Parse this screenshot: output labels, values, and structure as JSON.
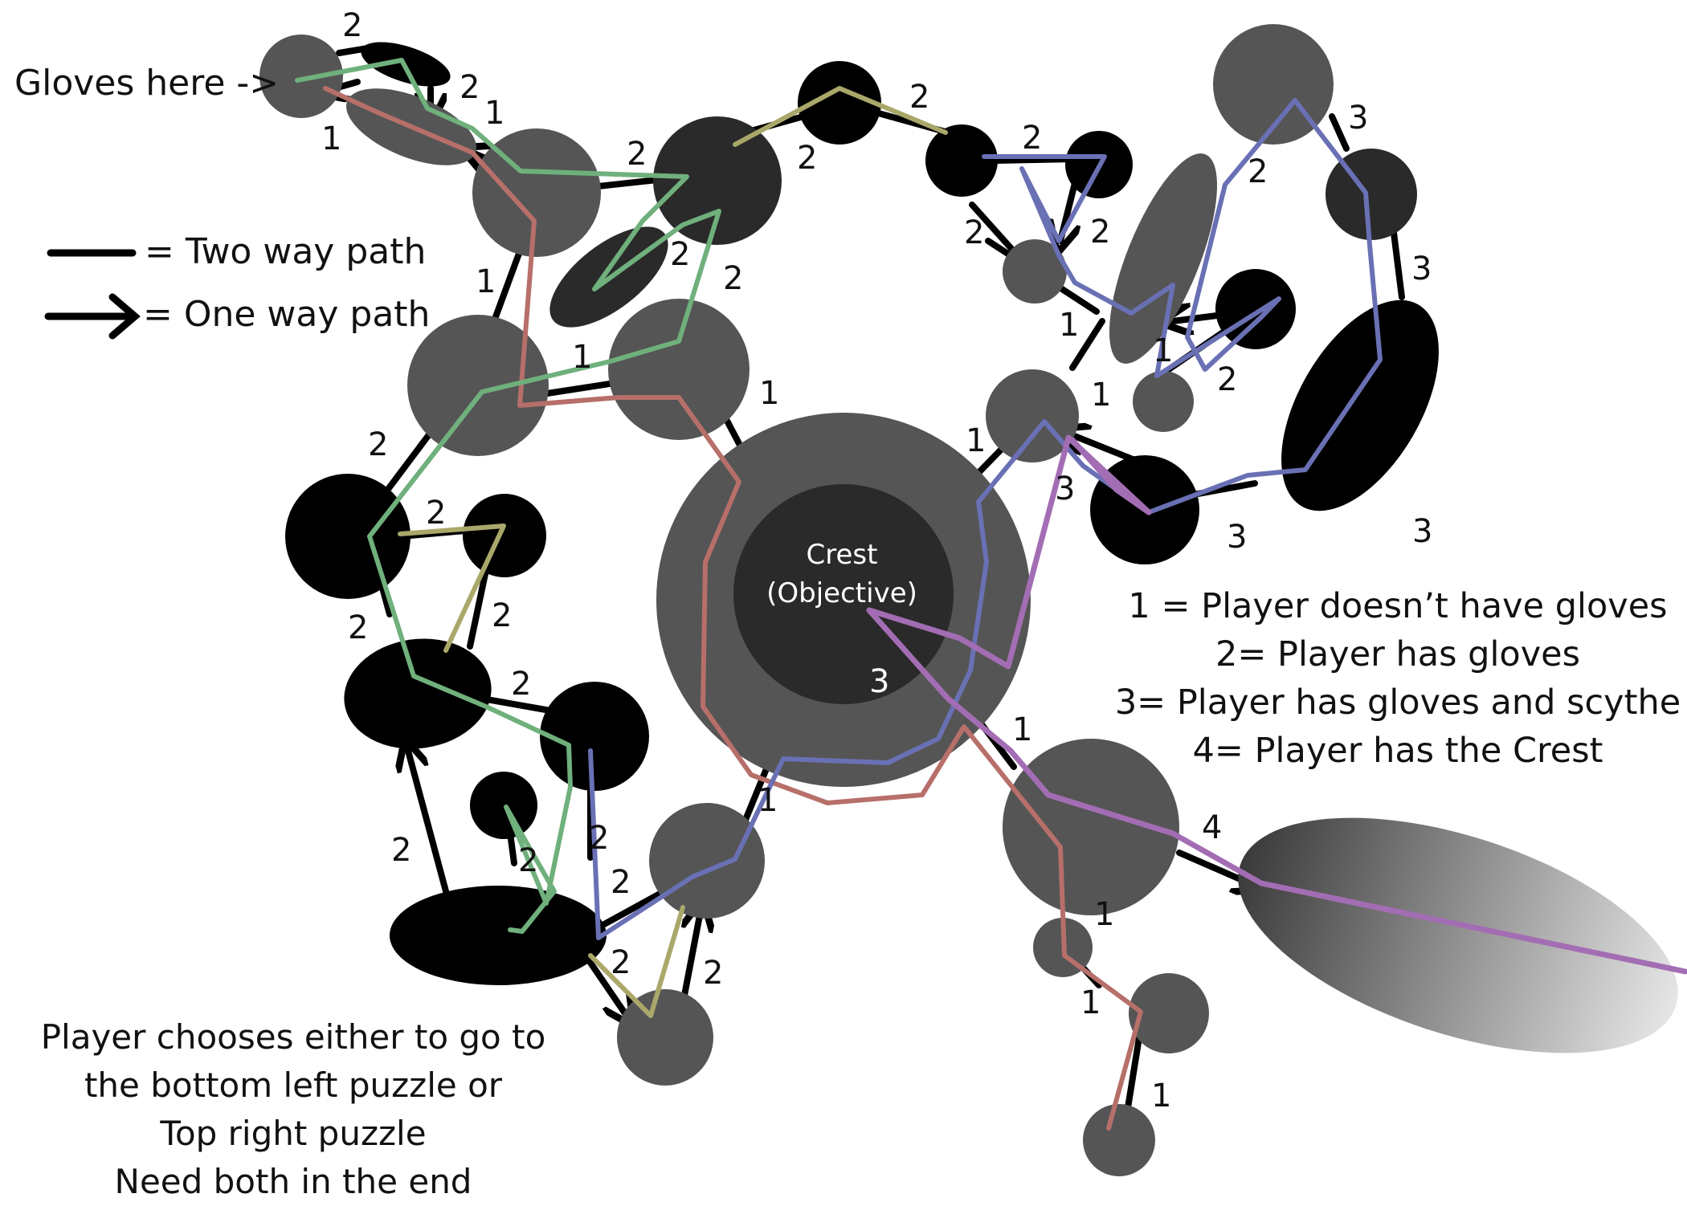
{
  "labels": {
    "gloves": "Gloves here ->",
    "crest_line1": "Crest",
    "crest_line2": "(Objective)",
    "legend_two_way": "= Two way path",
    "legend_one_way": "= One way path"
  },
  "key": [
    "1 = Player doesn’t have gloves",
    "2= Player has gloves",
    "3= Player has gloves and scythe",
    "4= Player has the Crest"
  ],
  "footnote": [
    "Player chooses either to go to",
    "the bottom left puzzle or",
    "Top right puzzle",
    "Need both in the end"
  ],
  "edge_numbers": [
    "2",
    "2",
    "1",
    "1",
    "2",
    "2",
    "2",
    "1",
    "2",
    "2",
    "1",
    "1",
    "2",
    "2",
    "2",
    "2",
    "2",
    "2",
    "2",
    "2",
    "2",
    "2",
    "2",
    "2",
    "2",
    "2",
    "3",
    "3",
    "2",
    "2",
    "1",
    "1",
    "1",
    "1",
    "3",
    "3",
    "3",
    "1",
    "1",
    "1",
    "1",
    "1",
    "3",
    "4"
  ],
  "path_colors": {
    "red": "#b76f6a",
    "green": "#6fb07c",
    "olive": "#a9a86a",
    "blue": "#6a70b4",
    "purple": "#a36db4"
  }
}
